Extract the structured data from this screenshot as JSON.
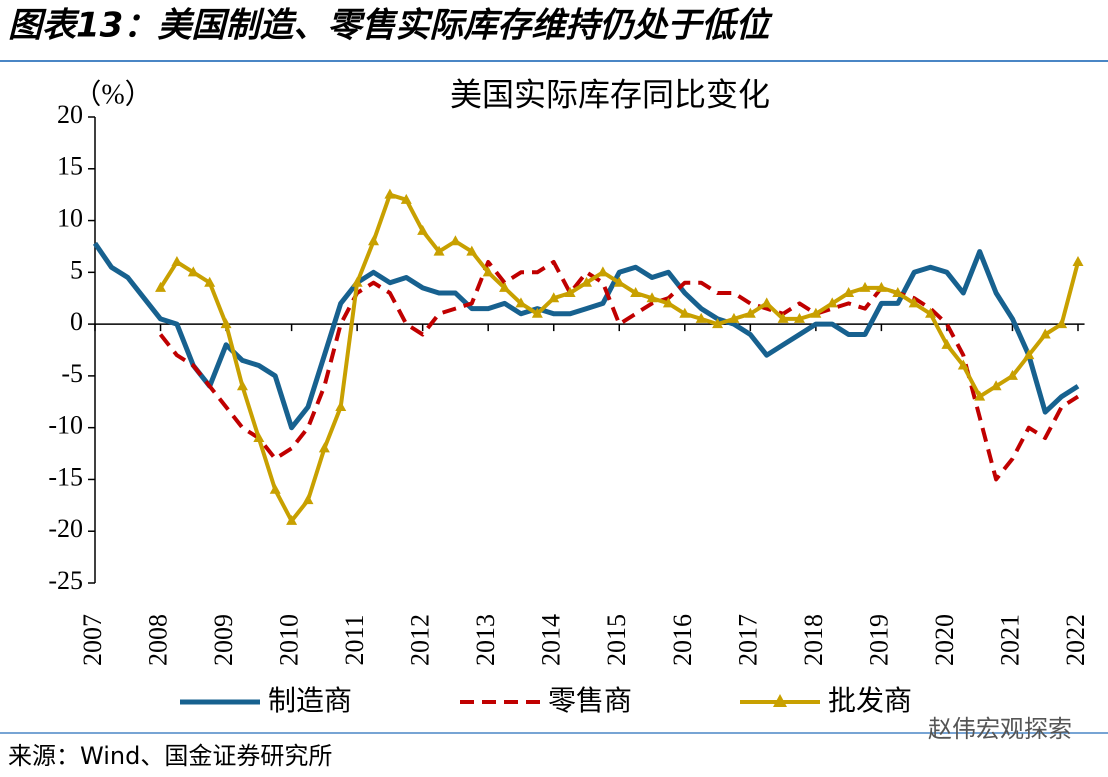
{
  "heading": "图表13：美国制造、零售实际库存维持仍处于低位",
  "source": "来源：Wind、国金证券研究所",
  "watermark": "赵伟宏观探索",
  "chart_data": {
    "type": "line",
    "title": "美国实际库存同比变化",
    "y_label": "（%）",
    "x": [
      2007,
      2007.25,
      2007.5,
      2007.75,
      2008,
      2008.25,
      2008.5,
      2008.75,
      2009,
      2009.25,
      2009.5,
      2009.75,
      2010,
      2010.25,
      2010.5,
      2010.75,
      2011,
      2011.25,
      2011.5,
      2011.75,
      2012,
      2012.25,
      2012.5,
      2012.75,
      2013,
      2013.25,
      2013.5,
      2013.75,
      2014,
      2014.25,
      2014.5,
      2014.75,
      2015,
      2015.25,
      2015.5,
      2015.75,
      2016,
      2016.25,
      2016.5,
      2016.75,
      2017,
      2017.25,
      2017.5,
      2017.75,
      2018,
      2018.25,
      2018.5,
      2018.75,
      2019,
      2019.25,
      2019.5,
      2019.75,
      2020,
      2020.25,
      2020.5,
      2020.75,
      2021,
      2021.25,
      2021.5,
      2021.75,
      2022
    ],
    "series": [
      {
        "name": "制造商",
        "color": "#17618f",
        "style": "solid",
        "values": [
          7.8,
          5.5,
          4.5,
          2.5,
          0.5,
          0,
          -4,
          -6,
          -2,
          -3.5,
          -4,
          -5,
          -10,
          -8,
          -3,
          2,
          4,
          5,
          4,
          4.5,
          3.5,
          3,
          3,
          1.5,
          1.5,
          2,
          1,
          1.5,
          1,
          1,
          1.5,
          2,
          5,
          5.5,
          4.5,
          5,
          3,
          1.5,
          0.5,
          0,
          -1,
          -3,
          -2,
          -1,
          0,
          0,
          -1,
          -1,
          2,
          2,
          5,
          5.5,
          5,
          3,
          7,
          3,
          0.5,
          -3,
          -8.5,
          -7,
          -6
        ]
      },
      {
        "name": "零售商",
        "color": "#c00000",
        "style": "dashed",
        "values": [
          null,
          null,
          null,
          null,
          -1,
          -3,
          -4,
          -6,
          -8,
          -10,
          -11,
          -13,
          -12,
          -10,
          -6,
          0,
          3,
          4,
          3,
          0,
          -1,
          1,
          1.5,
          2,
          6,
          4,
          5,
          5,
          6,
          3,
          5,
          4,
          0,
          1,
          2,
          2.5,
          4,
          4,
          3,
          3,
          2,
          1.5,
          1,
          2,
          1,
          1.5,
          2,
          1.5,
          3.5,
          3,
          2.5,
          1.5,
          0,
          -3,
          -9,
          -15,
          -13,
          -10,
          -11,
          -8,
          -7
        ]
      },
      {
        "name": "批发商",
        "color": "#c8a000",
        "style": "triangle",
        "values": [
          null,
          null,
          null,
          null,
          3.5,
          6,
          5,
          4,
          0,
          -6,
          -11,
          -16,
          -19,
          -17,
          -12,
          -8,
          4,
          8,
          12.5,
          12,
          9,
          7,
          8,
          7,
          5,
          3.5,
          2,
          1,
          2.5,
          3,
          4,
          5,
          4,
          3,
          2.5,
          2,
          1,
          0.5,
          0,
          0.5,
          1,
          2,
          0.5,
          0.5,
          1,
          2,
          3,
          3.5,
          3.5,
          3,
          2,
          1,
          -2,
          -4,
          -7,
          -6,
          -5,
          -3,
          -1,
          0,
          6
        ]
      }
    ],
    "xlim": [
      2007,
      2022.1
    ],
    "xticks": [
      2007,
      2008,
      2009,
      2010,
      2011,
      2012,
      2013,
      2014,
      2015,
      2016,
      2017,
      2018,
      2019,
      2020,
      2021,
      2022
    ],
    "ylim": [
      -25,
      20
    ],
    "yticks": [
      -25,
      -20,
      -15,
      -10,
      -5,
      0,
      5,
      10,
      15,
      20
    ],
    "grid": false,
    "legend": "bottom"
  }
}
